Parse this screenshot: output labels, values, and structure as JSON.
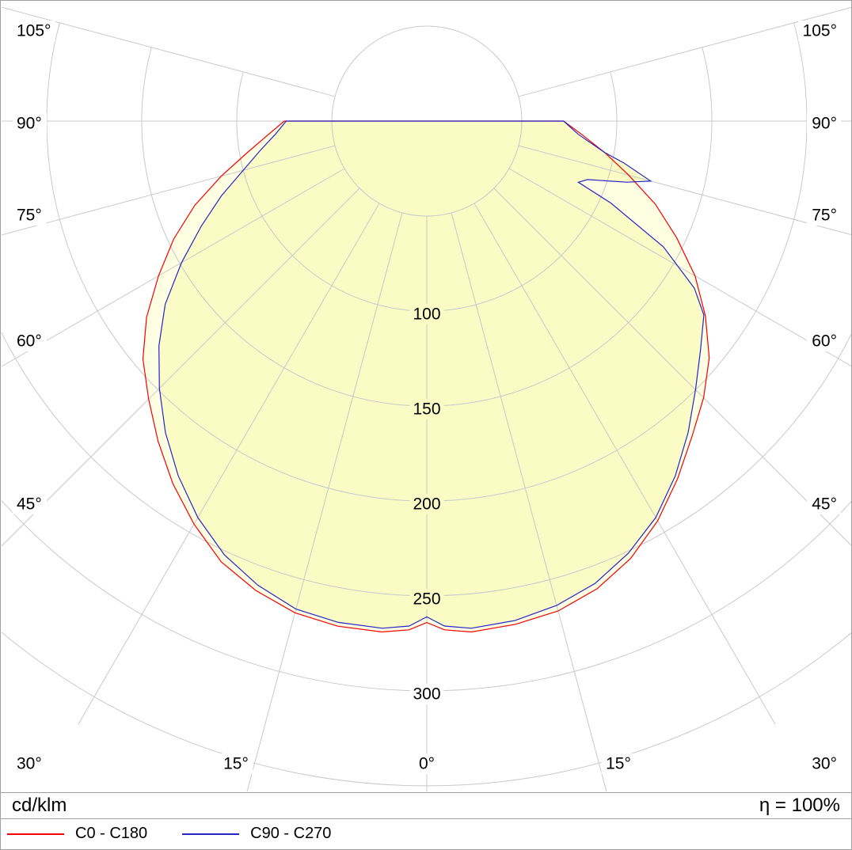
{
  "colors": {
    "background": "#ffffff",
    "frame": "#9f9f9f",
    "grid": "#c9c9c9",
    "curve_c0": "#f50000",
    "curve_c90": "#2424c8",
    "fill_outer": "#fefee3",
    "fill_inner": "#fbfbc5",
    "text": "#000000"
  },
  "footer": {
    "units_label": "cd/klm",
    "efficiency_label": "η = 100%"
  },
  "chart_data": {
    "type": "line",
    "projection": "polar",
    "title": "",
    "units": "cd/klm",
    "efficiency_percent": 100,
    "grid": true,
    "legend_position": "bottom-left",
    "gamma_axis": {
      "tick_step_deg": 15,
      "max_deg": 105,
      "labels_left": [
        "105°",
        "90°",
        "75°",
        "60°",
        "45°",
        "30°"
      ],
      "labels_right": [
        "105°",
        "90°",
        "75°",
        "60°",
        "45°",
        "30°"
      ],
      "labels_bottom": [
        "15°",
        "0°",
        "15°"
      ]
    },
    "radial_axis": {
      "unit": "cd/klm",
      "circle_step": 50,
      "max": 350,
      "labels": [
        {
          "value": 100,
          "label": "100"
        },
        {
          "value": 150,
          "label": "150"
        },
        {
          "value": 200,
          "label": "200"
        },
        {
          "value": 250,
          "label": "250"
        },
        {
          "value": 300,
          "label": "300"
        }
      ]
    },
    "series": [
      {
        "name": "C0 - C180",
        "color": "#f50000",
        "points": [
          [
            -90,
            75
          ],
          [
            -85,
            84
          ],
          [
            -80,
            96
          ],
          [
            -75,
            112
          ],
          [
            -70,
            130
          ],
          [
            -65,
            147
          ],
          [
            -60,
            163
          ],
          [
            -55,
            180
          ],
          [
            -50,
            195
          ],
          [
            -45,
            207
          ],
          [
            -40,
            220
          ],
          [
            -35,
            233
          ],
          [
            -30,
            245
          ],
          [
            -25,
            256
          ],
          [
            -20,
            263
          ],
          [
            -15,
            268
          ],
          [
            -10,
            270
          ],
          [
            -5,
            270
          ],
          [
            -2,
            268
          ],
          [
            0,
            264
          ],
          [
            2,
            268
          ],
          [
            5,
            270
          ],
          [
            10,
            269
          ],
          [
            15,
            267
          ],
          [
            20,
            262
          ],
          [
            25,
            254
          ],
          [
            30,
            243
          ],
          [
            35,
            230
          ],
          [
            40,
            217
          ],
          [
            45,
            206
          ],
          [
            50,
            194
          ],
          [
            55,
            179
          ],
          [
            60,
            163
          ],
          [
            65,
            145
          ],
          [
            70,
            128
          ],
          [
            75,
            110
          ],
          [
            80,
            95
          ],
          [
            85,
            82
          ],
          [
            90,
            72
          ]
        ]
      },
      {
        "name": "C90 - C270",
        "color": "#2424c8",
        "points": [
          [
            -90,
            74
          ],
          [
            -85,
            80
          ],
          [
            -80,
            89
          ],
          [
            -75,
            100
          ],
          [
            -70,
            115
          ],
          [
            -65,
            131
          ],
          [
            -60,
            149
          ],
          [
            -55,
            168
          ],
          [
            -50,
            184
          ],
          [
            -45,
            199
          ],
          [
            -40,
            214
          ],
          [
            -35,
            228
          ],
          [
            -30,
            241
          ],
          [
            -25,
            252
          ],
          [
            -20,
            260
          ],
          [
            -15,
            266
          ],
          [
            -10,
            268
          ],
          [
            -5,
            268
          ],
          [
            -2,
            266
          ],
          [
            0,
            261
          ],
          [
            2,
            266
          ],
          [
            5,
            268
          ],
          [
            10,
            267
          ],
          [
            15,
            264
          ],
          [
            20,
            259
          ],
          [
            25,
            251
          ],
          [
            30,
            241
          ],
          [
            35,
            228
          ],
          [
            40,
            214
          ],
          [
            45,
            200
          ],
          [
            50,
            188
          ],
          [
            55,
            178
          ],
          [
            58,
            166
          ],
          [
            62,
            141
          ],
          [
            66,
            106
          ],
          [
            68,
            86
          ],
          [
            70,
            90
          ],
          [
            73,
            110
          ],
          [
            75,
            122
          ],
          [
            78,
            106
          ],
          [
            80,
            95
          ],
          [
            85,
            80
          ],
          [
            90,
            72
          ]
        ]
      }
    ]
  }
}
